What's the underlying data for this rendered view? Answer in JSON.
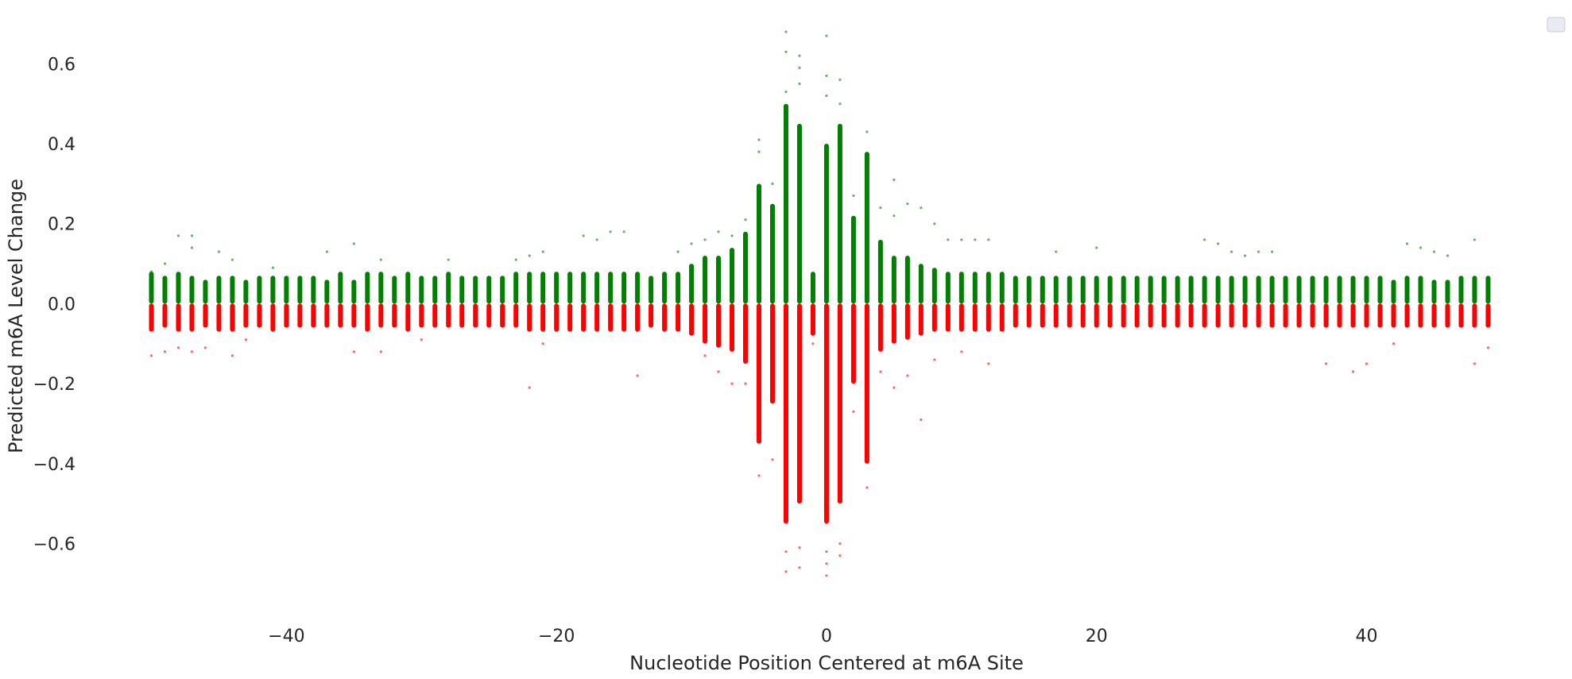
{
  "chart_data": {
    "type": "scatter",
    "title": "",
    "xlabel": "Nucleotide Position Centered at m6A Site",
    "ylabel": "Predicted m6A Level Change",
    "xlim": [
      -51.5,
      51.8
    ],
    "ylim": [
      -0.74,
      0.7
    ],
    "xticks": [
      -40,
      -20,
      0,
      20,
      40
    ],
    "xtick_labels": [
      "−40",
      "−20",
      "0",
      "20",
      "40"
    ],
    "yticks": [
      0.6,
      0.4,
      0.2,
      0.0,
      -0.2,
      -0.4,
      -0.6
    ],
    "ytick_labels": [
      "0.6",
      "0.4",
      "0.2",
      "0.0",
      "−0.2",
      "−0.4",
      "−0.6"
    ],
    "grid": false,
    "legend": {
      "placement": "top-right",
      "entries": []
    },
    "colors": {
      "positive": "#008000",
      "negative": "#ff0000"
    },
    "x_positions": [
      -50,
      -49,
      -48,
      -47,
      -46,
      -45,
      -44,
      -43,
      -42,
      -41,
      -40,
      -39,
      -38,
      -37,
      -36,
      -35,
      -34,
      -33,
      -32,
      -31,
      -30,
      -29,
      -28,
      -27,
      -26,
      -25,
      -24,
      -23,
      -22,
      -21,
      -20,
      -19,
      -18,
      -17,
      -16,
      -15,
      -14,
      -13,
      -12,
      -11,
      -10,
      -9,
      -8,
      -7,
      -6,
      -5,
      -4,
      -3,
      -2,
      -1,
      0,
      1,
      2,
      3,
      4,
      5,
      6,
      7,
      8,
      9,
      10,
      11,
      12,
      13,
      14,
      15,
      16,
      17,
      18,
      19,
      20,
      21,
      22,
      23,
      24,
      25,
      26,
      27,
      28,
      29,
      30,
      31,
      32,
      33,
      34,
      35,
      36,
      37,
      38,
      39,
      40,
      41,
      42,
      43,
      44,
      45,
      46,
      47,
      48,
      49
    ],
    "series": [
      {
        "sign": "positive",
        "color": "#008000",
        "description_of_values": "dense range top (upper extent of dense points) per position",
        "dense_max": [
          0.08,
          0.07,
          0.08,
          0.07,
          0.06,
          0.07,
          0.07,
          0.06,
          0.07,
          0.07,
          0.07,
          0.07,
          0.07,
          0.06,
          0.08,
          0.06,
          0.08,
          0.08,
          0.07,
          0.08,
          0.07,
          0.07,
          0.08,
          0.07,
          0.07,
          0.07,
          0.07,
          0.08,
          0.08,
          0.08,
          0.08,
          0.08,
          0.08,
          0.08,
          0.08,
          0.08,
          0.08,
          0.07,
          0.08,
          0.08,
          0.1,
          0.12,
          0.12,
          0.14,
          0.18,
          0.3,
          0.25,
          0.5,
          0.45,
          0.08,
          0.4,
          0.45,
          0.22,
          0.38,
          0.16,
          0.12,
          0.12,
          0.1,
          0.09,
          0.08,
          0.08,
          0.08,
          0.08,
          0.08,
          0.07,
          0.07,
          0.07,
          0.07,
          0.07,
          0.07,
          0.07,
          0.07,
          0.07,
          0.07,
          0.07,
          0.07,
          0.07,
          0.07,
          0.07,
          0.07,
          0.07,
          0.07,
          0.07,
          0.07,
          0.07,
          0.07,
          0.07,
          0.07,
          0.07,
          0.07,
          0.07,
          0.07,
          0.06,
          0.07,
          0.07,
          0.06,
          0.06,
          0.07,
          0.07,
          0.07
        ],
        "outliers": [
          [
            -50,
            0.08
          ],
          [
            -49,
            0.1
          ],
          [
            -48,
            0.17
          ],
          [
            -47,
            0.17
          ],
          [
            -47,
            0.14
          ],
          [
            -45,
            0.13
          ],
          [
            -44,
            0.11
          ],
          [
            -41,
            0.09
          ],
          [
            -37,
            0.13
          ],
          [
            -35,
            0.15
          ],
          [
            -33,
            0.11
          ],
          [
            -28,
            0.11
          ],
          [
            -23,
            0.11
          ],
          [
            -22,
            0.12
          ],
          [
            -21,
            0.13
          ],
          [
            -18,
            0.17
          ],
          [
            -17,
            0.16
          ],
          [
            -16,
            0.18
          ],
          [
            -15,
            0.18
          ],
          [
            -11,
            0.13
          ],
          [
            -10,
            0.15
          ],
          [
            -9,
            0.16
          ],
          [
            -8,
            0.18
          ],
          [
            -7,
            0.17
          ],
          [
            -6,
            0.21
          ],
          [
            -5,
            0.41
          ],
          [
            -5,
            0.38
          ],
          [
            -4,
            0.3
          ],
          [
            -3,
            0.68
          ],
          [
            -3,
            0.63
          ],
          [
            -3,
            0.53
          ],
          [
            -2,
            0.62
          ],
          [
            -2,
            0.59
          ],
          [
            -2,
            0.55
          ],
          [
            0,
            0.67
          ],
          [
            0,
            0.57
          ],
          [
            0,
            0.52
          ],
          [
            1,
            0.56
          ],
          [
            1,
            0.5
          ],
          [
            2,
            0.27
          ],
          [
            3,
            0.43
          ],
          [
            4,
            0.24
          ],
          [
            5,
            0.31
          ],
          [
            5,
            0.22
          ],
          [
            6,
            0.25
          ],
          [
            7,
            0.24
          ],
          [
            8,
            0.2
          ],
          [
            9,
            0.16
          ],
          [
            10,
            0.16
          ],
          [
            11,
            0.16
          ],
          [
            12,
            0.16
          ],
          [
            17,
            0.13
          ],
          [
            20,
            0.14
          ],
          [
            28,
            0.16
          ],
          [
            29,
            0.15
          ],
          [
            30,
            0.13
          ],
          [
            31,
            0.12
          ],
          [
            32,
            0.13
          ],
          [
            33,
            0.13
          ],
          [
            43,
            0.15
          ],
          [
            44,
            0.14
          ],
          [
            45,
            0.13
          ],
          [
            46,
            0.12
          ],
          [
            48,
            0.16
          ]
        ]
      },
      {
        "sign": "negative",
        "color": "#ff0000",
        "description_of_values": "dense range bottom (lower extent of dense points) per position",
        "dense_min": [
          -0.07,
          -0.06,
          -0.07,
          -0.07,
          -0.06,
          -0.07,
          -0.07,
          -0.06,
          -0.06,
          -0.07,
          -0.06,
          -0.06,
          -0.06,
          -0.06,
          -0.06,
          -0.06,
          -0.07,
          -0.06,
          -0.06,
          -0.07,
          -0.06,
          -0.06,
          -0.06,
          -0.06,
          -0.06,
          -0.06,
          -0.06,
          -0.06,
          -0.07,
          -0.07,
          -0.07,
          -0.07,
          -0.07,
          -0.07,
          -0.07,
          -0.07,
          -0.07,
          -0.06,
          -0.07,
          -0.07,
          -0.08,
          -0.1,
          -0.11,
          -0.12,
          -0.15,
          -0.35,
          -0.25,
          -0.55,
          -0.5,
          -0.08,
          -0.55,
          -0.5,
          -0.2,
          -0.4,
          -0.12,
          -0.1,
          -0.09,
          -0.08,
          -0.07,
          -0.07,
          -0.07,
          -0.07,
          -0.07,
          -0.07,
          -0.06,
          -0.06,
          -0.06,
          -0.06,
          -0.06,
          -0.06,
          -0.06,
          -0.06,
          -0.06,
          -0.06,
          -0.06,
          -0.06,
          -0.06,
          -0.06,
          -0.06,
          -0.06,
          -0.06,
          -0.06,
          -0.06,
          -0.06,
          -0.06,
          -0.06,
          -0.06,
          -0.06,
          -0.06,
          -0.06,
          -0.06,
          -0.06,
          -0.06,
          -0.06,
          -0.06,
          -0.06,
          -0.06,
          -0.06,
          -0.06,
          -0.06
        ],
        "outliers": [
          [
            -50,
            -0.13
          ],
          [
            -49,
            -0.12
          ],
          [
            -48,
            -0.11
          ],
          [
            -47,
            -0.12
          ],
          [
            -46,
            -0.11
          ],
          [
            -44,
            -0.13
          ],
          [
            -43,
            -0.09
          ],
          [
            -35,
            -0.12
          ],
          [
            -33,
            -0.12
          ],
          [
            -30,
            -0.09
          ],
          [
            -22,
            -0.21
          ],
          [
            -21,
            -0.1
          ],
          [
            -14,
            -0.18
          ],
          [
            -9,
            -0.13
          ],
          [
            -8,
            -0.17
          ],
          [
            -7,
            -0.2
          ],
          [
            -6,
            -0.2
          ],
          [
            -5,
            -0.43
          ],
          [
            -4,
            -0.39
          ],
          [
            -3,
            -0.67
          ],
          [
            -3,
            -0.62
          ],
          [
            -2,
            -0.66
          ],
          [
            -2,
            -0.61
          ],
          [
            -1,
            -0.1
          ],
          [
            0,
            -0.68
          ],
          [
            0,
            -0.65
          ],
          [
            0,
            -0.62
          ],
          [
            1,
            -0.63
          ],
          [
            1,
            -0.6
          ],
          [
            2,
            -0.27
          ],
          [
            3,
            -0.46
          ],
          [
            4,
            -0.17
          ],
          [
            5,
            -0.21
          ],
          [
            6,
            -0.18
          ],
          [
            7,
            -0.29
          ],
          [
            8,
            -0.14
          ],
          [
            10,
            -0.12
          ],
          [
            12,
            -0.15
          ],
          [
            37,
            -0.15
          ],
          [
            39,
            -0.17
          ],
          [
            40,
            -0.15
          ],
          [
            42,
            -0.1
          ],
          [
            48,
            -0.15
          ],
          [
            49,
            -0.11
          ]
        ]
      }
    ]
  }
}
